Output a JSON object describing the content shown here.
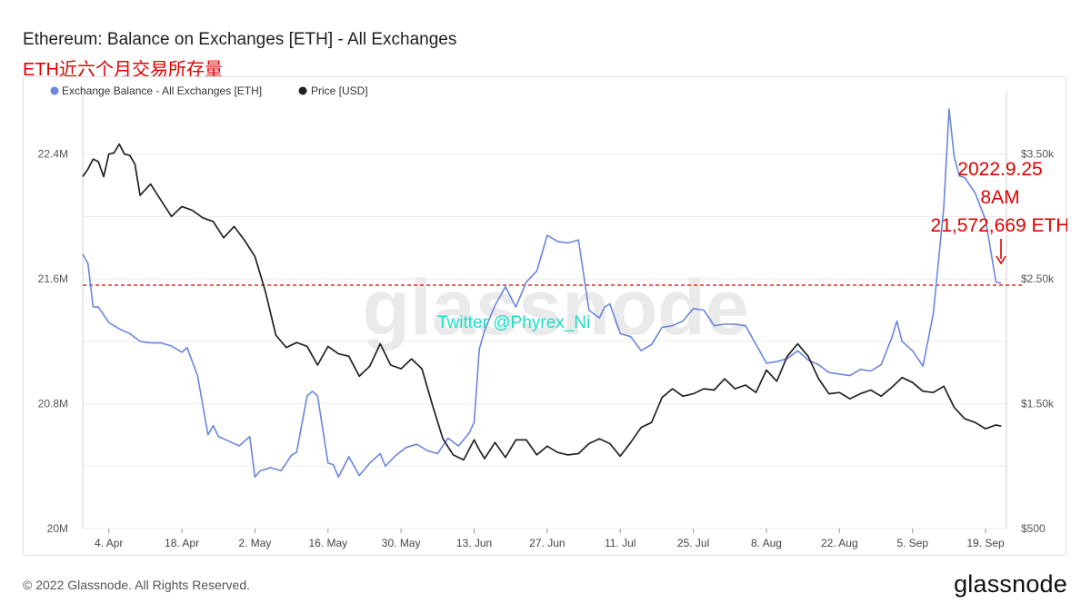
{
  "title": "Ethereum: Balance on Exchanges [ETH] - All Exchanges",
  "subtitle": "ETH近六个月交易所存量",
  "watermark": "glassnode",
  "twitter_tag": "Twitter @Phyrex_Ni",
  "footer": {
    "copyright": "© 2022 Glassnode. All Rights Reserved.",
    "logo": "glassnode"
  },
  "colors": {
    "balance": "#6b86de",
    "price": "#222222",
    "reference": "#e00000",
    "annotation": "#e00000",
    "twitter": "#19e0c8"
  },
  "annotation": {
    "lines": [
      "2022.9.25",
      "8AM",
      "21,572,669 ETH"
    ],
    "value": 21572669
  },
  "chart_data": {
    "type": "line",
    "legend": [
      "Exchange Balance - All Exchanges [ETH]",
      "Price [USD]"
    ],
    "legend_position": "top-left",
    "grid": true,
    "x_ticks": [
      "4. Apr",
      "18. Apr",
      "2. May",
      "16. May",
      "30. May",
      "13. Jun",
      "27. Jun",
      "11. Jul",
      "25. Jul",
      "8. Aug",
      "22. Aug",
      "5. Sep",
      "19. Sep"
    ],
    "x_tick_days": [
      4,
      18,
      32,
      46,
      60,
      74,
      88,
      102,
      116,
      130,
      144,
      158,
      172
    ],
    "x_range_days": [
      -1,
      176
    ],
    "y_left": {
      "ticks": [
        20000000,
        20800000,
        21600000,
        22400000
      ],
      "tick_labels": [
        "20M",
        "20.8M",
        "21.6M",
        "22.4M"
      ],
      "range": [
        20000000,
        22800000
      ]
    },
    "y_right": {
      "ticks": [
        500,
        1500,
        2500,
        3500
      ],
      "tick_labels": [
        "$500",
        "$1.50k",
        "$2.50k",
        "$3.50k"
      ],
      "range": [
        500,
        4000
      ]
    },
    "reference_value": 21560000,
    "series": [
      {
        "name": "Exchange Balance - All Exchanges [ETH]",
        "axis": "left",
        "x": [
          -1,
          0,
          1,
          2,
          4,
          6,
          8,
          10,
          12,
          14,
          16,
          18,
          19,
          21,
          23,
          24,
          25,
          27,
          29,
          31,
          32,
          33,
          35,
          37,
          39,
          40,
          42,
          43,
          44,
          46,
          47,
          48,
          50,
          52,
          54,
          56,
          57,
          59,
          61,
          63,
          65,
          67,
          69,
          71,
          73,
          74,
          75,
          76,
          77,
          78,
          80,
          82,
          84,
          86,
          88,
          90,
          92,
          94,
          96,
          98,
          99,
          100,
          102,
          104,
          106,
          108,
          110,
          112,
          114,
          116,
          118,
          120,
          122,
          124,
          126,
          128,
          130,
          132,
          134,
          136,
          138,
          140,
          142,
          144,
          146,
          148,
          150,
          152,
          154,
          155,
          156,
          158,
          160,
          162,
          164,
          165,
          166,
          167,
          168,
          170,
          172,
          174,
          175
        ],
        "y": [
          21760000,
          21700000,
          21420000,
          21420000,
          21320000,
          21280000,
          21250000,
          21200000,
          21190000,
          21190000,
          21170000,
          21130000,
          21160000,
          20980000,
          20600000,
          20660000,
          20590000,
          20560000,
          20530000,
          20590000,
          20330000,
          20370000,
          20390000,
          20370000,
          20470000,
          20490000,
          20850000,
          20880000,
          20850000,
          20420000,
          20410000,
          20330000,
          20460000,
          20340000,
          20420000,
          20480000,
          20400000,
          20470000,
          20520000,
          20540000,
          20500000,
          20480000,
          20580000,
          20530000,
          20610000,
          20680000,
          21150000,
          21270000,
          21350000,
          21430000,
          21550000,
          21420000,
          21580000,
          21650000,
          21880000,
          21840000,
          21830000,
          21850000,
          21400000,
          21350000,
          21420000,
          21440000,
          21250000,
          21230000,
          21140000,
          21180000,
          21290000,
          21300000,
          21330000,
          21410000,
          21400000,
          21300000,
          21310000,
          21310000,
          21300000,
          21180000,
          21060000,
          21070000,
          21090000,
          21140000,
          21080000,
          21050000,
          21000000,
          20990000,
          20980000,
          21020000,
          21010000,
          21050000,
          21220000,
          21330000,
          21200000,
          21140000,
          21040000,
          21380000,
          22060000,
          22690000,
          22380000,
          22260000,
          22250000,
          22150000,
          21980000,
          21580000,
          21572669
        ]
      },
      {
        "name": "Price [USD]",
        "axis": "right",
        "x": [
          -1,
          0,
          1,
          2,
          3,
          4,
          5,
          6,
          7,
          8,
          9,
          10,
          12,
          14,
          16,
          18,
          20,
          22,
          24,
          26,
          28,
          30,
          32,
          34,
          36,
          38,
          40,
          42,
          44,
          46,
          48,
          50,
          52,
          54,
          56,
          58,
          60,
          62,
          64,
          66,
          68,
          70,
          72,
          74,
          75,
          76,
          78,
          80,
          82,
          84,
          86,
          88,
          90,
          92,
          94,
          96,
          98,
          100,
          102,
          104,
          106,
          108,
          110,
          112,
          114,
          116,
          118,
          120,
          122,
          124,
          126,
          128,
          130,
          132,
          134,
          136,
          138,
          140,
          142,
          144,
          146,
          148,
          150,
          152,
          154,
          156,
          158,
          160,
          162,
          164,
          166,
          168,
          170,
          172,
          174,
          175
        ],
        "y": [
          3320,
          3380,
          3460,
          3440,
          3320,
          3500,
          3510,
          3580,
          3500,
          3490,
          3420,
          3170,
          3260,
          3130,
          3000,
          3080,
          3050,
          2990,
          2960,
          2830,
          2920,
          2810,
          2680,
          2400,
          2050,
          1950,
          1990,
          1960,
          1810,
          1960,
          1900,
          1880,
          1720,
          1800,
          1980,
          1810,
          1780,
          1860,
          1780,
          1490,
          1220,
          1090,
          1050,
          1210,
          1130,
          1060,
          1190,
          1070,
          1210,
          1210,
          1090,
          1160,
          1110,
          1090,
          1100,
          1180,
          1220,
          1180,
          1080,
          1190,
          1310,
          1350,
          1550,
          1620,
          1560,
          1580,
          1620,
          1610,
          1700,
          1620,
          1650,
          1590,
          1770,
          1680,
          1880,
          1980,
          1880,
          1700,
          1580,
          1590,
          1540,
          1580,
          1610,
          1560,
          1630,
          1710,
          1670,
          1600,
          1590,
          1640,
          1470,
          1380,
          1350,
          1300,
          1330,
          1320
        ]
      }
    ]
  }
}
